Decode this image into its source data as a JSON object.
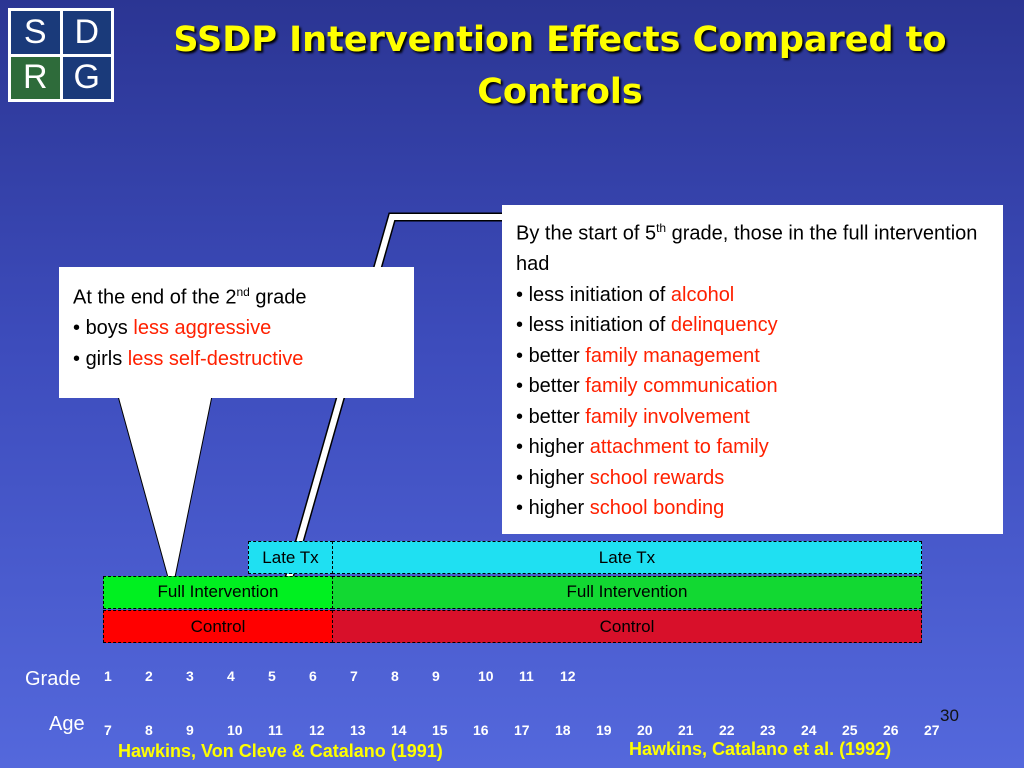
{
  "logo": {
    "letters": [
      "S",
      "D",
      "R",
      "G"
    ]
  },
  "header": {
    "title": "SSDP Intervention Effects Compared to Controls"
  },
  "callout_left": {
    "intro": {
      "before": "At the end of the 2",
      "sup": "nd",
      "after": " grade"
    },
    "items": [
      {
        "lead": "boys",
        "effect": "less aggressive"
      },
      {
        "lead": "girls",
        "effect": "less self-destructive"
      }
    ]
  },
  "callout_right": {
    "intro": {
      "before": "By the start of 5",
      "sup": "th",
      "after": " grade, those in the full intervention had"
    },
    "items": [
      {
        "lead": "less initiation of",
        "effect": "alcohol"
      },
      {
        "lead": "less initiation of",
        "effect": "delinquency"
      },
      {
        "lead": "better",
        "effect": "family management"
      },
      {
        "lead": "better",
        "effect": "family communication"
      },
      {
        "lead": "better",
        "effect": "family involvement"
      },
      {
        "lead": "higher",
        "effect": "attachment to family"
      },
      {
        "lead": "higher",
        "effect": "school rewards"
      },
      {
        "lead": "higher",
        "effect": "school bonding"
      }
    ]
  },
  "timeline": {
    "rows": [
      {
        "early": "Late Tx",
        "late": "Late Tx"
      },
      {
        "early": "Full Intervention",
        "late": "Full Intervention"
      },
      {
        "early": "Control",
        "late": "Control"
      }
    ],
    "grade_label": "Grade",
    "grades": [
      1,
      2,
      3,
      4,
      5,
      6,
      7,
      8,
      9,
      10,
      11,
      12
    ],
    "age_label": "Age",
    "ages": [
      7,
      8,
      9,
      10,
      11,
      12,
      13,
      14,
      15,
      16,
      17,
      18,
      19,
      20,
      21,
      22,
      23,
      24,
      25,
      26,
      27
    ]
  },
  "citations": {
    "left": "Hawkins, Von Cleve & Catalano (1991)",
    "right": "Hawkins, Catalano et al. (1992)"
  },
  "page_number": 30
}
